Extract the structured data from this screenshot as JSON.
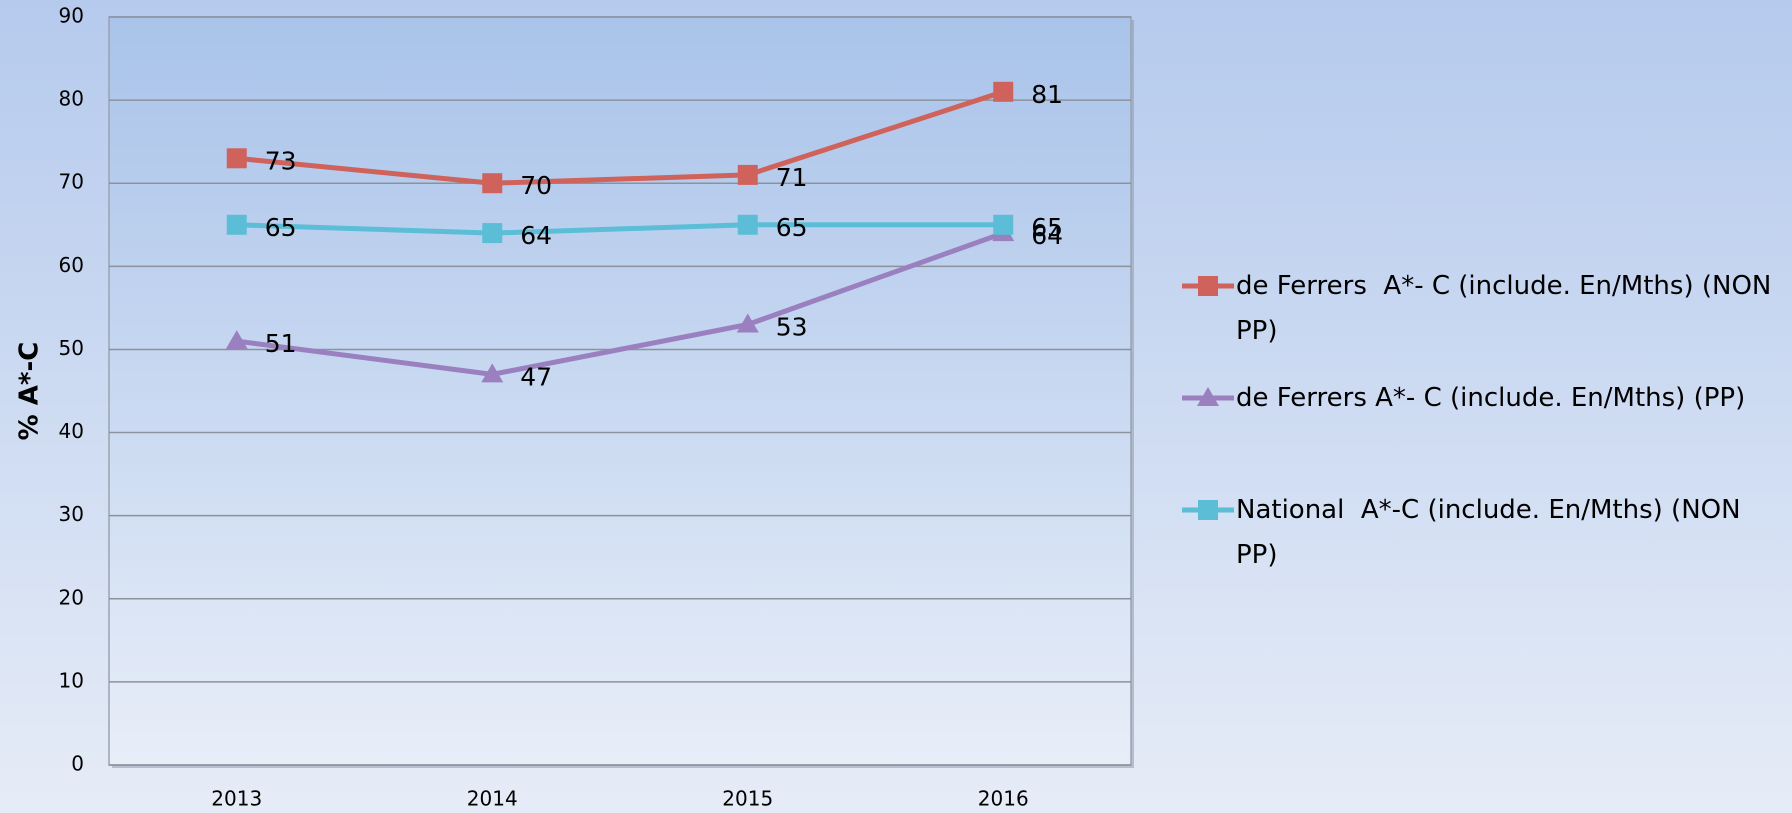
{
  "chart_data": {
    "type": "line",
    "y_label": "% A*-C",
    "categories": [
      "2013",
      "2014",
      "2015",
      "2016"
    ],
    "series": [
      {
        "name": "de Ferrers  A*- C (include. En/Mths) (NON PP)",
        "color": "#d0625c",
        "marker": "square",
        "values": [
          73,
          70,
          71,
          81
        ]
      },
      {
        "name": "de Ferrers A*- C (include. En/Mths) (PP)",
        "color": "#9a80bf",
        "marker": "triangle",
        "values": [
          51,
          47,
          53,
          64
        ]
      },
      {
        "name": "National  A*-C (include. En/Mths) (NON PP)",
        "color": "#5cbdd6",
        "marker": "square",
        "values": [
          65,
          64,
          65,
          65
        ]
      }
    ],
    "ylim": [
      0,
      90
    ],
    "yticks": [
      0,
      10,
      20,
      30,
      40,
      50,
      60,
      70,
      80,
      90
    ],
    "grid": true,
    "legend": "right"
  }
}
